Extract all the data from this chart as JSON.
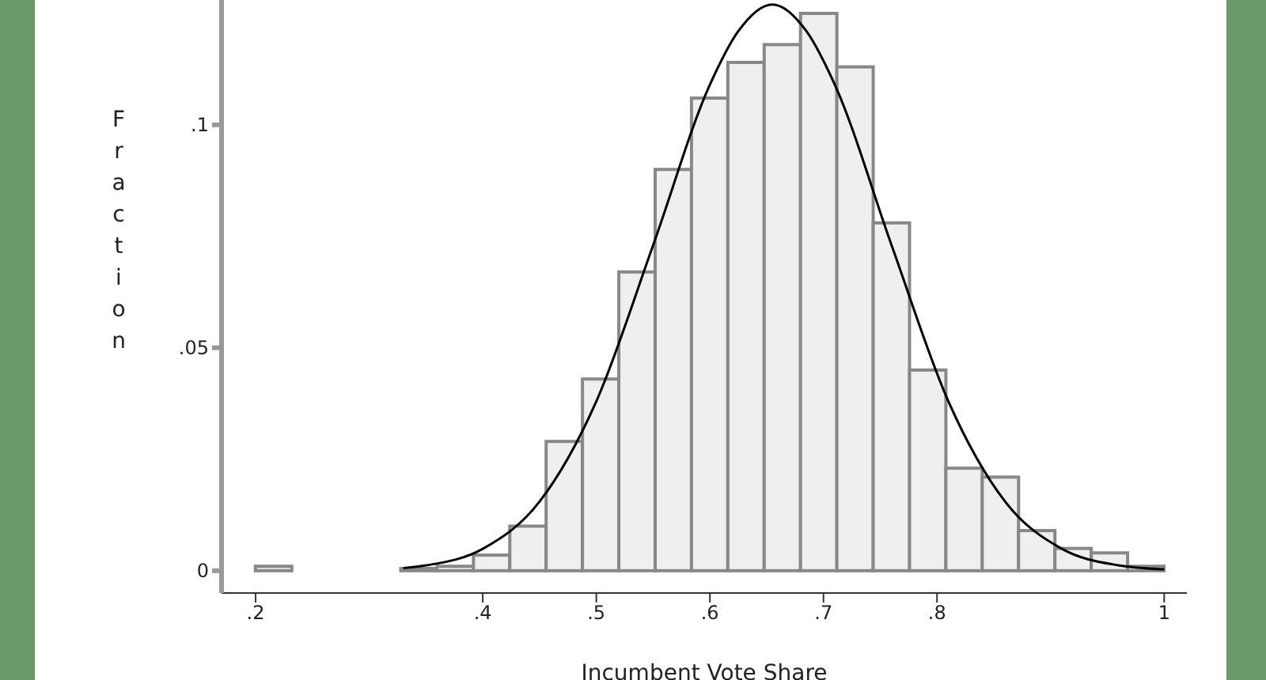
{
  "chart_data": {
    "type": "histogram",
    "xlabel": "Incumbent Vote Share",
    "ylabel": "Fraction",
    "bins": [
      0.2,
      0.232,
      0.264,
      0.296,
      0.328,
      0.36,
      0.392,
      0.424,
      0.456,
      0.488,
      0.52,
      0.552,
      0.584,
      0.616,
      0.648,
      0.68,
      0.712,
      0.744,
      0.776,
      0.808,
      0.84,
      0.872,
      0.904,
      0.936,
      0.968,
      1.0
    ],
    "values": [
      0.001,
      0,
      0,
      0,
      0.0005,
      0.001,
      0.0035,
      0.01,
      0.029,
      0.043,
      0.067,
      0.09,
      0.106,
      0.114,
      0.118,
      0.125,
      0.113,
      0.078,
      0.045,
      0.023,
      0.021,
      0.009,
      0.005,
      0.004,
      0.001
    ],
    "color": "#efefef",
    "series": [
      {
        "type": "line",
        "color": "#000000",
        "x": [
          0.33,
          0.35,
          0.4,
          0.45,
          0.5,
          0.55,
          0.6,
          0.625,
          0.655,
          0.685,
          0.71,
          0.76,
          0.81,
          0.86,
          0.91,
          0.96,
          1.0
        ],
        "values": [
          0.0006,
          0.0012,
          0.0049,
          0.0155,
          0.038,
          0.073,
          0.109,
          0.121,
          0.127,
          0.121,
          0.109,
          0.073,
          0.038,
          0.0155,
          0.0049,
          0.0012,
          0.0003
        ]
      }
    ],
    "xlim": [
      0.17,
      1.02
    ],
    "ylim": [
      -0.005,
      0.128
    ],
    "xticks": [
      {
        "value": 0.2,
        "label": ".2"
      },
      {
        "value": 0.4,
        "label": ".4"
      },
      {
        "value": 0.5,
        "label": ".5"
      },
      {
        "value": 0.6,
        "label": ".6"
      },
      {
        "value": 0.7,
        "label": ".7"
      },
      {
        "value": 0.8,
        "label": ".8"
      },
      {
        "value": 1,
        "label": "1"
      }
    ],
    "yticks": [
      0,
      {
        "value": 0.05,
        "label": ".05"
      },
      {
        "value": 0.1,
        "label": ".1"
      }
    ],
    "grid": false,
    "legend": false,
    "marker": "none"
  }
}
